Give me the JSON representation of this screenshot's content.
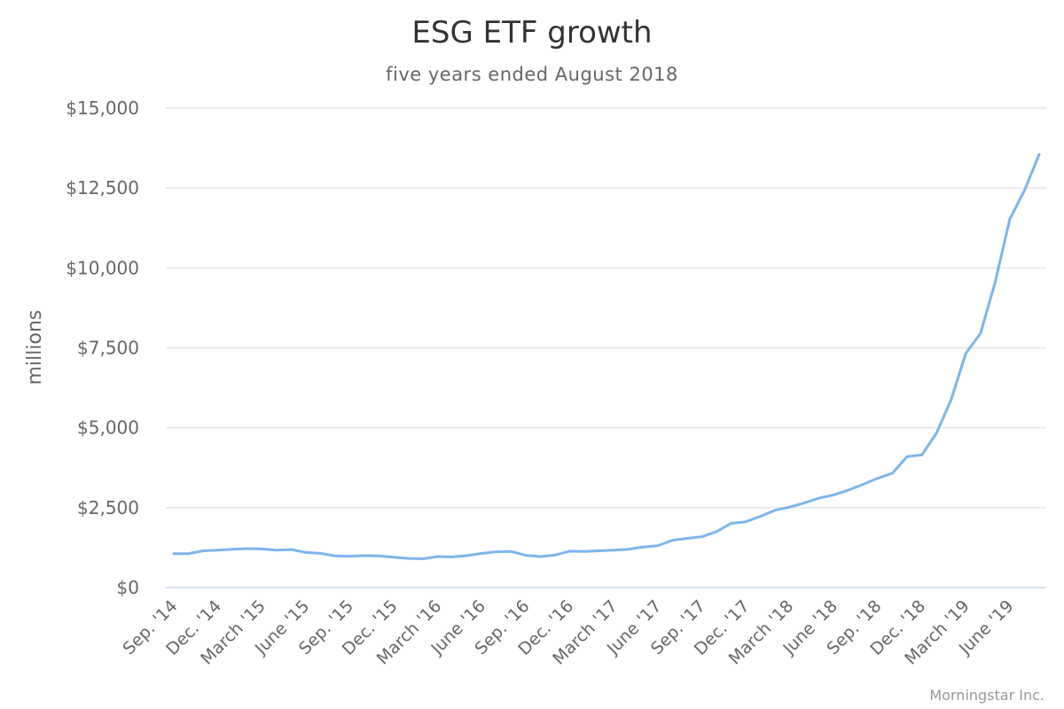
{
  "chart_data": {
    "type": "line",
    "title": "ESG ETF growth",
    "subtitle": "five years ended August 2018",
    "ylabel": "millions",
    "credit": "Morningstar Inc.",
    "ylim": [
      0,
      15000
    ],
    "y_ticks": [
      0,
      2500,
      5000,
      7500,
      10000,
      12500,
      15000
    ],
    "y_tick_labels": [
      "$0",
      "$2,500",
      "$5,000",
      "$7,500",
      "$10,000",
      "$12,500",
      "$15,000"
    ],
    "x_tick_labels": [
      "Sep. '14",
      "Dec. '14",
      "March '15",
      "June '15",
      "Sep. '15",
      "Dec. '15",
      "March '16",
      "June '16",
      "Sep. '16",
      "Dec. '16",
      "March '17",
      "June '17",
      "Sep. '17",
      "Dec. '17",
      "March '18",
      "June '18",
      "Sep. '18",
      "Dec. '18",
      "March '19",
      "June '19"
    ],
    "x_tick_every": 3,
    "grid": true,
    "color": "#7cb5ec",
    "series": [
      {
        "name": "",
        "values": [
          1060,
          1060,
          1150,
          1170,
          1200,
          1220,
          1210,
          1170,
          1190,
          1100,
          1070,
          990,
          980,
          1000,
          990,
          950,
          910,
          900,
          970,
          960,
          1000,
          1070,
          1120,
          1130,
          1010,
          970,
          1020,
          1140,
          1130,
          1150,
          1170,
          1200,
          1270,
          1310,
          1480,
          1540,
          1590,
          1750,
          2010,
          2060,
          2230,
          2420,
          2520,
          2650,
          2800,
          2900,
          3050,
          3230,
          3420,
          3580,
          4100,
          4150,
          4830,
          5880,
          7330,
          7950,
          9550,
          11530,
          12430,
          13550
        ]
      }
    ]
  }
}
